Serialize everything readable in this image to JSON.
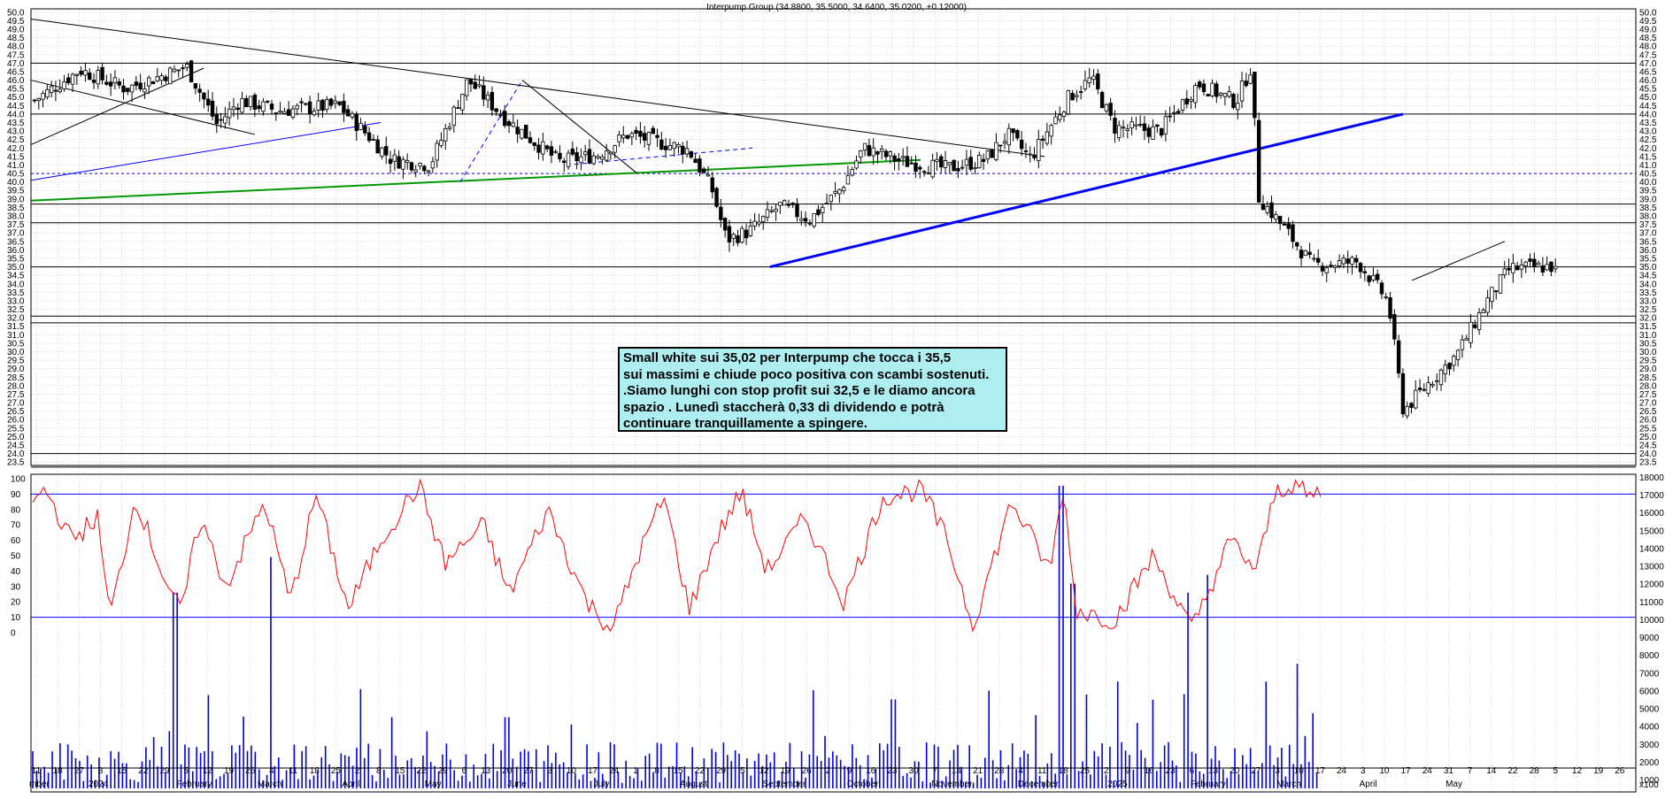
{
  "title": "Interpump Group (34.8800, 35.5000, 34.6400, 35.0200, +0.12000)",
  "annotation": "Small white sui 35,02 per Interpump che tocca i 35,5\nsui massimi e chiude poco positiva con scambi sostenuti.\n.Siamo lunghi con stop profit sui 32,5 e le diamo ancora\nspazio . Lunedì staccherà 0,33 di dividendo e potrà\ncontinuare tranquillamente a spingere.",
  "colors": {
    "background": "#ffffff",
    "bull": "#ffffff",
    "bear": "#000000",
    "rsi": "#ff0000",
    "volume": "#0000dd",
    "trend_blue": "#0000ff",
    "trend_green": "#009900",
    "grid": "#b8b8b8"
  },
  "x_axis": {
    "days": [
      "11",
      "18",
      "27",
      "8",
      "15",
      "22",
      "29",
      "5",
      "12",
      "19",
      "26",
      "4",
      "11",
      "18",
      "25",
      "2",
      "8",
      "15",
      "22",
      "29",
      "6",
      "13",
      "20",
      "27",
      "3",
      "10",
      "17",
      "24",
      "1",
      "8",
      "15",
      "22",
      "29",
      "5",
      "12",
      "19",
      "26",
      "2",
      "9",
      "16",
      "23",
      "30",
      "7",
      "14",
      "21",
      "28",
      "4",
      "11",
      "18",
      "25",
      "2",
      "9",
      "16",
      "23",
      "6",
      "13",
      "20",
      "27",
      "3",
      "10",
      "17",
      "24",
      "3",
      "10",
      "17",
      "24",
      "31",
      "7",
      "14",
      "22",
      "28",
      "5",
      "12",
      "19",
      "26"
    ],
    "months": [
      "mber",
      "2024",
      "February",
      "March",
      "April",
      "May",
      "June",
      "July",
      "August",
      "September",
      "October",
      "November",
      "December",
      "2025",
      "February",
      "March",
      "April",
      "May"
    ],
    "corner_label": "x100"
  },
  "price_axis": {
    "ticks": [
      "50.0",
      "49.5",
      "49.0",
      "48.5",
      "48.0",
      "47.5",
      "47.0",
      "46.5",
      "46.0",
      "45.5",
      "45.0",
      "44.5",
      "44.0",
      "43.5",
      "43.0",
      "42.5",
      "42.0",
      "41.5",
      "41.0",
      "40.5",
      "40.0",
      "39.5",
      "39.0",
      "38.5",
      "38.0",
      "37.5",
      "37.0",
      "36.5",
      "36.0",
      "35.5",
      "35.0",
      "34.5",
      "34.0",
      "33.5",
      "33.0",
      "32.5",
      "32.0",
      "31.5",
      "31.0",
      "30.5",
      "30.0",
      "29.5",
      "29.0",
      "28.5",
      "28.0",
      "27.5",
      "27.0",
      "26.5",
      "26.0",
      "25.5",
      "25.0",
      "24.5",
      "24.0",
      "23.5"
    ]
  },
  "rsi_axis": {
    "ticks": [
      "100",
      "90",
      "80",
      "70",
      "60",
      "50",
      "40",
      "30",
      "20",
      "10",
      "0"
    ]
  },
  "volume_axis": {
    "ticks": [
      "18000",
      "17000",
      "16000",
      "15000",
      "14000",
      "13000",
      "12000",
      "11000",
      "10000",
      "9000",
      "8000",
      "7000",
      "6000",
      "5000",
      "4000",
      "3000",
      "2000",
      "1000"
    ]
  },
  "chart_data": [
    {
      "type": "candlestick",
      "title": "Interpump Group (34.8800, 35.5000, 34.6400, 35.0200, +0.12000)",
      "ylim": [
        23.3,
        50.2
      ],
      "x_range": "Dec 2023 - May 2025",
      "last_bar": {
        "open": 34.88,
        "high": 35.5,
        "low": 34.64,
        "close": 35.02,
        "change": 0.12
      },
      "close_anchors": [
        {
          "t": 0,
          "v": 44.8
        },
        {
          "t": 0.03,
          "v": 46.6
        },
        {
          "t": 0.06,
          "v": 45.5
        },
        {
          "t": 0.1,
          "v": 46.8
        },
        {
          "t": 0.12,
          "v": 43.4
        },
        {
          "t": 0.135,
          "v": 44.8
        },
        {
          "t": 0.16,
          "v": 44.2
        },
        {
          "t": 0.2,
          "v": 44.5
        },
        {
          "t": 0.235,
          "v": 41.3
        },
        {
          "t": 0.26,
          "v": 41.0
        },
        {
          "t": 0.285,
          "v": 46.0
        },
        {
          "t": 0.31,
          "v": 43.7
        },
        {
          "t": 0.345,
          "v": 41.2
        },
        {
          "t": 0.37,
          "v": 41.6
        },
        {
          "t": 0.39,
          "v": 42.8
        },
        {
          "t": 0.43,
          "v": 41.9
        },
        {
          "t": 0.445,
          "v": 39.7
        },
        {
          "t": 0.455,
          "v": 36.6
        },
        {
          "t": 0.47,
          "v": 37.1
        },
        {
          "t": 0.49,
          "v": 38.6
        },
        {
          "t": 0.51,
          "v": 37.8
        },
        {
          "t": 0.53,
          "v": 39.6
        },
        {
          "t": 0.545,
          "v": 42.0
        },
        {
          "t": 0.57,
          "v": 41.2
        },
        {
          "t": 0.6,
          "v": 40.8
        },
        {
          "t": 0.625,
          "v": 41.3
        },
        {
          "t": 0.64,
          "v": 42.8
        },
        {
          "t": 0.655,
          "v": 41.4
        },
        {
          "t": 0.68,
          "v": 45.0
        },
        {
          "t": 0.695,
          "v": 46.1
        },
        {
          "t": 0.71,
          "v": 43.2
        },
        {
          "t": 0.74,
          "v": 43.0
        },
        {
          "t": 0.765,
          "v": 45.8
        },
        {
          "t": 0.79,
          "v": 44.7
        },
        {
          "t": 0.8,
          "v": 46.8
        },
        {
          "t": 0.805,
          "v": 39.1
        },
        {
          "t": 0.825,
          "v": 36.9
        },
        {
          "t": 0.84,
          "v": 35.1
        },
        {
          "t": 0.87,
          "v": 35.3
        },
        {
          "t": 0.89,
          "v": 33.0
        },
        {
          "t": 0.9,
          "v": 26.5
        },
        {
          "t": 0.915,
          "v": 28.0
        },
        {
          "t": 0.935,
          "v": 29.8
        },
        {
          "t": 0.955,
          "v": 33.0
        },
        {
          "t": 0.97,
          "v": 34.9
        },
        {
          "t": 1,
          "v": 35.02
        }
      ],
      "horizontal_levels": [
        47.0,
        44.0,
        40.5,
        38.7,
        37.6,
        35.0,
        32.1,
        31.7,
        24.0,
        23.2
      ],
      "trendlines": [
        {
          "color": "black",
          "from": [
            "2023-12",
            "49.6"
          ],
          "to": [
            "2024-11",
            "41.5"
          ]
        },
        {
          "color": "blue",
          "from": [
            "2023-12",
            "40.0"
          ],
          "to": [
            "2024-03",
            "43.5"
          ]
        },
        {
          "color": "green",
          "from": [
            "2023-12",
            "38.9"
          ],
          "to": [
            "2024-10",
            "41.3"
          ]
        },
        {
          "color": "blue",
          "from": [
            "2024-08",
            "35.0"
          ],
          "to": [
            "2025-03",
            "43.9"
          ]
        },
        {
          "color": "black",
          "from": [
            "2025-03",
            "34.2"
          ],
          "to": [
            "2025-03",
            "36.5"
          ]
        }
      ]
    },
    {
      "type": "line",
      "name": "RSI",
      "ylim": [
        0,
        100
      ],
      "reference_levels": [
        90,
        10
      ],
      "anchors": [
        {
          "t": 0,
          "v": 85
        },
        {
          "t": 0.01,
          "v": 93
        },
        {
          "t": 0.03,
          "v": 60
        },
        {
          "t": 0.05,
          "v": 75
        },
        {
          "t": 0.06,
          "v": 10
        },
        {
          "t": 0.08,
          "v": 88
        },
        {
          "t": 0.1,
          "v": 40
        },
        {
          "t": 0.115,
          "v": 12
        },
        {
          "t": 0.13,
          "v": 75
        },
        {
          "t": 0.15,
          "v": 30
        },
        {
          "t": 0.18,
          "v": 85
        },
        {
          "t": 0.2,
          "v": 20
        },
        {
          "t": 0.22,
          "v": 90
        },
        {
          "t": 0.245,
          "v": 15
        },
        {
          "t": 0.27,
          "v": 60
        },
        {
          "t": 0.3,
          "v": 96
        },
        {
          "t": 0.32,
          "v": 45
        },
        {
          "t": 0.35,
          "v": 70
        },
        {
          "t": 0.37,
          "v": 25
        },
        {
          "t": 0.4,
          "v": 80
        },
        {
          "t": 0.43,
          "v": 20
        },
        {
          "t": 0.45,
          "v": 2
        },
        {
          "t": 0.47,
          "v": 50
        },
        {
          "t": 0.49,
          "v": 88
        },
        {
          "t": 0.51,
          "v": 15
        },
        {
          "t": 0.53,
          "v": 60
        },
        {
          "t": 0.55,
          "v": 92
        },
        {
          "t": 0.57,
          "v": 40
        },
        {
          "t": 0.6,
          "v": 75
        },
        {
          "t": 0.63,
          "v": 20
        },
        {
          "t": 0.66,
          "v": 88
        },
        {
          "t": 0.69,
          "v": 93
        },
        {
          "t": 0.71,
          "v": 60
        },
        {
          "t": 0.73,
          "v": 5
        },
        {
          "t": 0.76,
          "v": 85
        },
        {
          "t": 0.79,
          "v": 40
        },
        {
          "t": 0.8,
          "v": 95
        },
        {
          "t": 0.81,
          "v": 15
        },
        {
          "t": 0.84,
          "v": 8
        },
        {
          "t": 0.87,
          "v": 50
        },
        {
          "t": 0.9,
          "v": 2
        },
        {
          "t": 0.93,
          "v": 60
        },
        {
          "t": 0.95,
          "v": 40
        },
        {
          "t": 0.965,
          "v": 92
        },
        {
          "t": 0.98,
          "v": 97
        },
        {
          "t": 0.99,
          "v": 88
        },
        {
          "t": 1,
          "v": 91
        }
      ]
    },
    {
      "type": "bar",
      "name": "Volume",
      "ylim": [
        1000,
        18000
      ],
      "spikes": [
        {
          "t": 0.11,
          "v": 12000
        },
        {
          "t": 0.185,
          "v": 14000
        },
        {
          "t": 0.28,
          "v": 5000
        },
        {
          "t": 0.37,
          "v": 5000
        },
        {
          "t": 0.67,
          "v": 6000
        },
        {
          "t": 0.8,
          "v": 18000
        },
        {
          "t": 0.81,
          "v": 12500
        },
        {
          "t": 0.845,
          "v": 7000
        },
        {
          "t": 0.9,
          "v": 12000
        },
        {
          "t": 0.915,
          "v": 13000
        },
        {
          "t": 0.96,
          "v": 7000
        },
        {
          "t": 0.985,
          "v": 8000
        }
      ]
    }
  ]
}
